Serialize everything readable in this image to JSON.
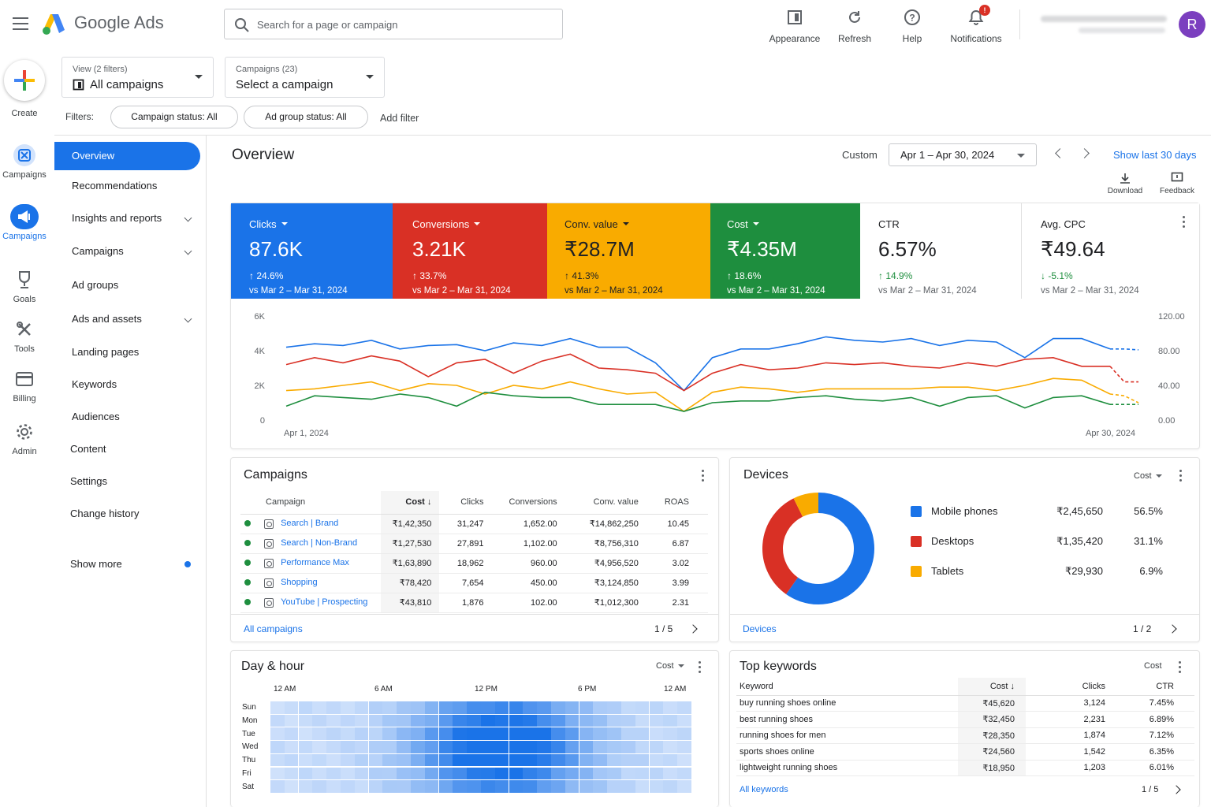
{
  "app": {
    "brand": "Google Ads"
  },
  "search": {
    "placeholder": "Search for a page or campaign"
  },
  "toolbar": {
    "appearance": "Appearance",
    "refresh": "Refresh",
    "help": "Help",
    "notifications": "Notifications",
    "notification_badge": "!"
  },
  "account": {
    "avatar_letter": "R"
  },
  "rail": {
    "create": "Create",
    "campaigns_top": "Campaigns",
    "campaigns": "Campaigns",
    "goals": "Goals",
    "tools": "Tools",
    "billing": "Billing",
    "admin": "Admin"
  },
  "view_dropdown": {
    "small": "View (2 filters)",
    "value": "All campaigns"
  },
  "campaign_dropdown": {
    "small": "Campaigns (23)",
    "value": "Select a campaign"
  },
  "filters": {
    "label": "Filters:",
    "chip1": "Campaign status: All",
    "chip2": "Ad group status: All",
    "add": "Add filter"
  },
  "nav": {
    "overview": "Overview",
    "recommendations": "Recommendations",
    "insights": "Insights and reports",
    "campaigns": "Campaigns",
    "ad_groups": "Ad groups",
    "ads_assets": "Ads and assets",
    "landing": "Landing pages",
    "keywords": "Keywords",
    "audiences": "Audiences",
    "content": "Content",
    "settings": "Settings",
    "history": "Change history",
    "show_more": "Show more"
  },
  "overview": {
    "title": "Overview",
    "custom": "Custom",
    "date_range": "Apr 1 – Apr 30, 2024",
    "show_last": "Show last 30 days",
    "download": "Download",
    "feedback": "Feedback"
  },
  "kpis": [
    {
      "label": "Clicks",
      "value": "87.6K",
      "change": "24.6%",
      "vs": "vs Mar 2 – Mar 31, 2024",
      "color": "#1a73e8"
    },
    {
      "label": "Conversions",
      "value": "3.21K",
      "change": "33.7%",
      "vs": "vs Mar 2 – Mar 31, 2024",
      "color": "#d93025"
    },
    {
      "label": "Conv. value",
      "value": "₹28.7M",
      "change": "41.3%",
      "vs": "vs Mar 2 – Mar 31, 2024",
      "color": "#f9ab00"
    },
    {
      "label": "Cost",
      "value": "₹4.35M",
      "change": "18.6%",
      "vs": "vs Mar 2 – Mar 31, 2024",
      "color": "#1e8e3e"
    },
    {
      "label": "CTR",
      "value": "6.57%",
      "change": "14.9%",
      "vs": "vs Mar 2 – Mar 31, 2024",
      "color": "#ffffff"
    },
    {
      "label": "Avg. CPC",
      "value": "₹49.64",
      "change": "-5.1%",
      "vs": "vs Mar 2 – Mar 31, 2024",
      "color": "#ffffff"
    }
  ],
  "chart_data": {
    "type": "line",
    "x_start_label": "Apr 1, 2024",
    "x_end_label": "Apr 30, 2024",
    "left_ticks": [
      "6K",
      "4K",
      "2K",
      "0"
    ],
    "right_ticks": [
      "120.00",
      "80.00",
      "40.00",
      "0.00"
    ],
    "ylim_left": [
      0,
      6000
    ],
    "ylim_right": [
      0,
      120
    ],
    "series": [
      {
        "name": "Clicks",
        "color": "#1a73e8",
        "values": [
          4200,
          4400,
          4300,
          4600,
          4100,
          4300,
          4350,
          4000,
          4450,
          4300,
          4700,
          4200,
          4200,
          3300,
          1700,
          3600,
          4100,
          4100,
          4400,
          4800,
          4600,
          4500,
          4700,
          4300,
          4600,
          4500,
          3600,
          4700,
          4700,
          4100
        ],
        "projected": [
          4100,
          4050
        ]
      },
      {
        "name": "Conversions",
        "color": "#d93025",
        "values": [
          3200,
          3600,
          3300,
          3700,
          3400,
          2500,
          3300,
          3500,
          2700,
          3400,
          3800,
          3000,
          2900,
          2700,
          1700,
          2700,
          3200,
          2900,
          3000,
          3300,
          3200,
          3300,
          3100,
          3000,
          3300,
          3100,
          3500,
          3600,
          3100,
          3100
        ],
        "projected": [
          2200,
          2200
        ]
      },
      {
        "name": "Conv. value",
        "color": "#f9ab00",
        "values": [
          1700,
          1800,
          2000,
          2200,
          1700,
          2100,
          2000,
          1500,
          2000,
          1800,
          2200,
          1800,
          1500,
          1600,
          500,
          1600,
          1900,
          1800,
          1600,
          1800,
          1800,
          1800,
          1800,
          1900,
          1900,
          1700,
          2000,
          2400,
          2300,
          1500
        ],
        "projected": [
          1400,
          1000
        ]
      },
      {
        "name": "Cost",
        "color": "#1e8e3e",
        "values": [
          800,
          1400,
          1300,
          1200,
          1500,
          1300,
          800,
          1600,
          1400,
          1300,
          1300,
          900,
          900,
          900,
          500,
          1000,
          1100,
          1100,
          1300,
          1400,
          1200,
          1100,
          1300,
          800,
          1300,
          1400,
          700,
          1300,
          1400,
          900
        ],
        "projected": [
          900,
          900
        ]
      }
    ]
  },
  "campaigns_card": {
    "title": "Campaigns",
    "headers": [
      "Campaign",
      "Cost",
      "Clicks",
      "Conversions",
      "Conv. value",
      "ROAS"
    ],
    "rows": [
      [
        "Search | Brand",
        "₹1,42,350",
        "31,247",
        "1,652.00",
        "₹14,862,250",
        "10.45"
      ],
      [
        "Search | Non-Brand",
        "₹1,27,530",
        "27,891",
        "1,102.00",
        "₹8,756,310",
        "6.87"
      ],
      [
        "Performance Max",
        "₹1,63,890",
        "18,962",
        "960.00",
        "₹4,956,520",
        "3.02"
      ],
      [
        "Shopping",
        "₹78,420",
        "7,654",
        "450.00",
        "₹3,124,850",
        "3.99"
      ],
      [
        "YouTube | Prospecting",
        "₹43,810",
        "1,876",
        "102.00",
        "₹1,012,300",
        "2.31"
      ]
    ],
    "link": "All campaigns",
    "page": "1 / 5"
  },
  "devices_card": {
    "title": "Devices",
    "sort": "Cost",
    "items": [
      {
        "name": "Mobile phones",
        "cost": "₹2,45,650",
        "pct": "56.5%",
        "share": 56.5,
        "color": "#1a73e8"
      },
      {
        "name": "Desktops",
        "cost": "₹1,35,420",
        "pct": "31.1%",
        "share": 31.1,
        "color": "#d93025"
      },
      {
        "name": "Tablets",
        "cost": "₹29,930",
        "pct": "6.9%",
        "share": 6.9,
        "color": "#f9ab00"
      }
    ],
    "link": "Devices",
    "page": "1 / 2"
  },
  "dayhour_card": {
    "title": "Day & hour",
    "sort": "Cost",
    "hour_labels": [
      "12 AM",
      "6 AM",
      "12 PM",
      "6 PM",
      "12 AM"
    ],
    "days": [
      "Sun",
      "Mon",
      "Tue",
      "Wed",
      "Thu",
      "Fri",
      "Sat"
    ]
  },
  "keywords_card": {
    "title": "Top keywords",
    "sort": "Cost",
    "headers": [
      "Keyword",
      "Cost",
      "Clicks",
      "CTR"
    ],
    "rows": [
      [
        "buy running shoes online",
        "₹45,620",
        "3,124",
        "7.45%"
      ],
      [
        "best running shoes",
        "₹32,450",
        "2,231",
        "6.89%"
      ],
      [
        "running shoes for men",
        "₹28,350",
        "1,874",
        "7.12%"
      ],
      [
        "sports shoes online",
        "₹24,560",
        "1,542",
        "6.35%"
      ],
      [
        "lightweight running shoes",
        "₹18,950",
        "1,203",
        "6.01%"
      ]
    ],
    "link": "All keywords",
    "page": "1 / 5"
  }
}
